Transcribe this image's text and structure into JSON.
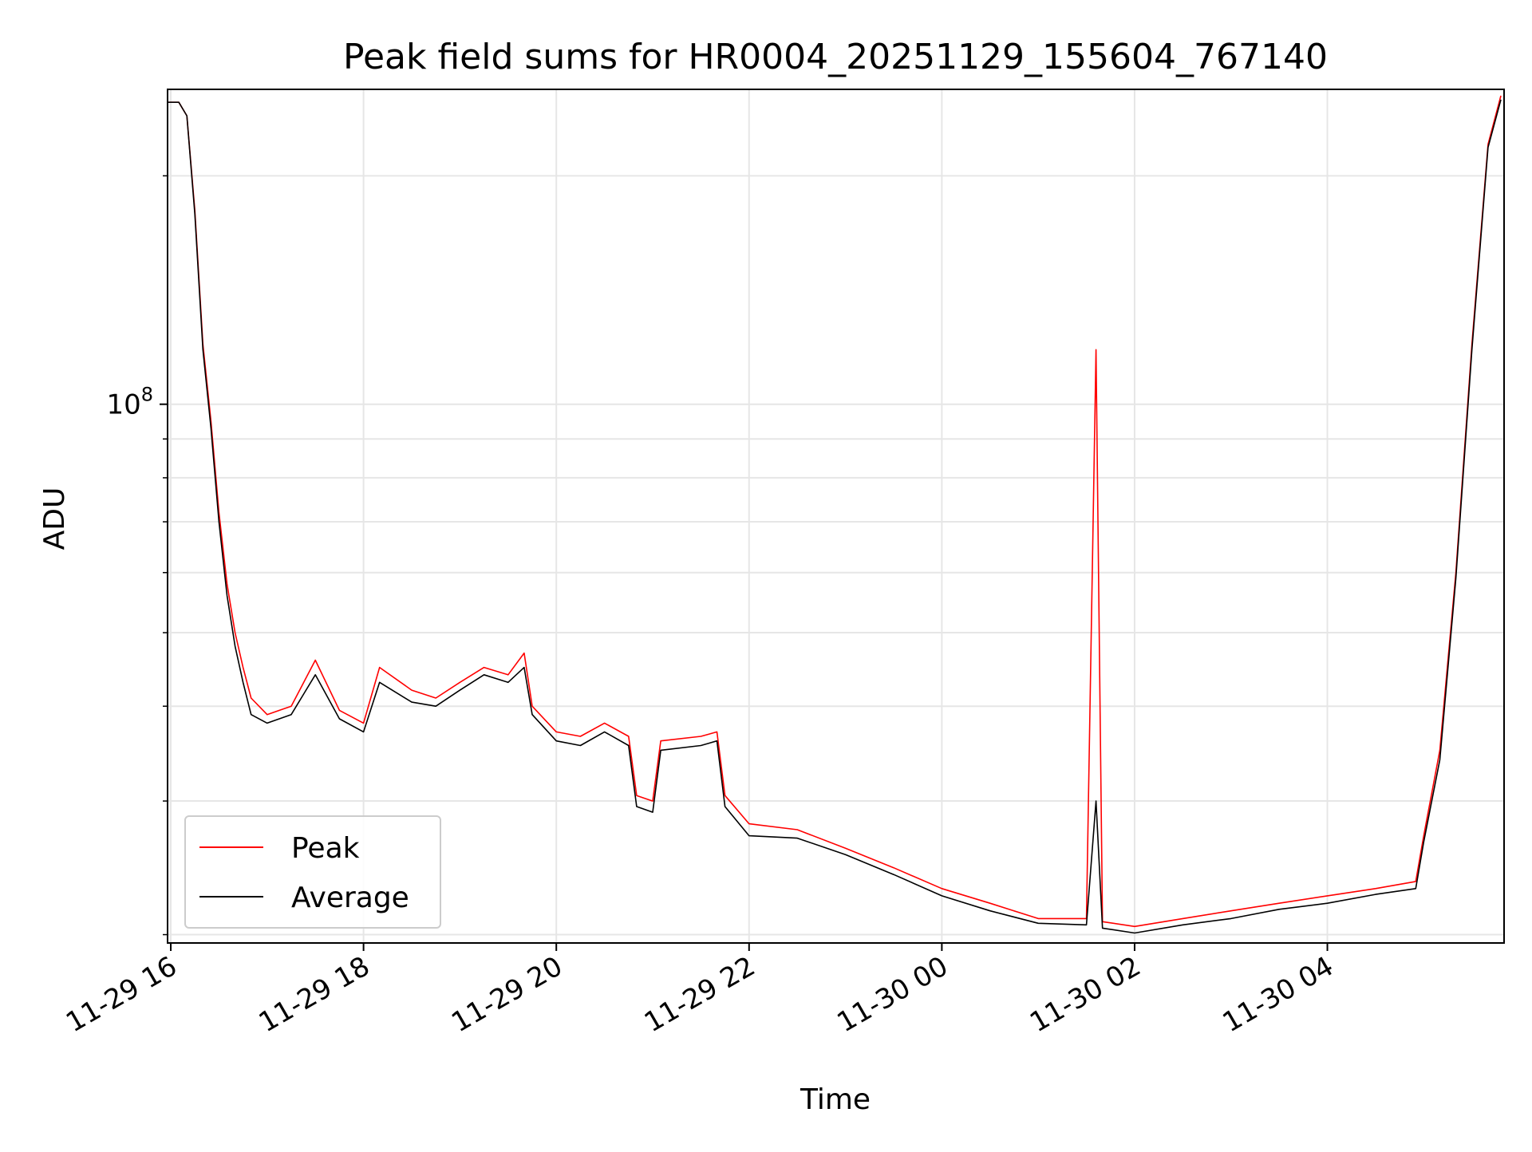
{
  "chart_data": {
    "type": "line",
    "title": "Peak field sums for HR0004_20251129_155604_767140",
    "xlabel": "Time",
    "ylabel": "ADU",
    "y_scale": "log",
    "xlim": [
      "2025-11-29 15:58",
      "2025-11-30 05:50"
    ],
    "ylim": [
      19500000,
      260000000
    ],
    "x_ticks": [
      {
        "value": "2025-11-29 16:00",
        "label": "11-29 16"
      },
      {
        "value": "2025-11-29 18:00",
        "label": "11-29 18"
      },
      {
        "value": "2025-11-29 20:00",
        "label": "11-29 20"
      },
      {
        "value": "2025-11-29 22:00",
        "label": "11-29 22"
      },
      {
        "value": "2025-11-30 00:00",
        "label": "11-30 00"
      },
      {
        "value": "2025-11-30 02:00",
        "label": "11-30 02"
      },
      {
        "value": "2025-11-30 04:00",
        "label": "11-30 04"
      }
    ],
    "y_ticks": [
      {
        "value": 100000000,
        "label": "10^8"
      }
    ],
    "grid": true,
    "legend_position": "lower-left",
    "series": [
      {
        "name": "Peak",
        "color": "#ff0000",
        "points": [
          [
            "2025-11-29 15:58",
            250000000
          ],
          [
            "2025-11-29 16:05",
            250000000
          ],
          [
            "2025-11-29 16:10",
            240000000
          ],
          [
            "2025-11-29 16:15",
            180000000
          ],
          [
            "2025-11-29 16:20",
            120000000
          ],
          [
            "2025-11-29 16:25",
            95000000
          ],
          [
            "2025-11-29 16:30",
            72000000
          ],
          [
            "2025-11-29 16:35",
            58000000
          ],
          [
            "2025-11-29 16:40",
            50000000
          ],
          [
            "2025-11-29 16:45",
            45000000
          ],
          [
            "2025-11-29 16:50",
            41000000
          ],
          [
            "2025-11-29 17:00",
            39000000
          ],
          [
            "2025-11-29 17:15",
            40000000
          ],
          [
            "2025-11-29 17:30",
            46000000
          ],
          [
            "2025-11-29 17:45",
            39500000
          ],
          [
            "2025-11-29 18:00",
            38000000
          ],
          [
            "2025-11-29 18:10",
            45000000
          ],
          [
            "2025-11-29 18:30",
            42000000
          ],
          [
            "2025-11-29 18:45",
            41000000
          ],
          [
            "2025-11-29 19:00",
            43000000
          ],
          [
            "2025-11-29 19:15",
            45000000
          ],
          [
            "2025-11-29 19:30",
            44000000
          ],
          [
            "2025-11-29 19:40",
            47000000
          ],
          [
            "2025-11-29 19:45",
            40000000
          ],
          [
            "2025-11-29 20:00",
            37000000
          ],
          [
            "2025-11-29 20:15",
            36500000
          ],
          [
            "2025-11-29 20:30",
            38000000
          ],
          [
            "2025-11-29 20:45",
            36500000
          ],
          [
            "2025-11-29 20:50",
            30500000
          ],
          [
            "2025-11-29 21:00",
            30000000
          ],
          [
            "2025-11-29 21:05",
            36000000
          ],
          [
            "2025-11-29 21:30",
            36500000
          ],
          [
            "2025-11-29 21:40",
            37000000
          ],
          [
            "2025-11-29 21:45",
            30500000
          ],
          [
            "2025-11-29 22:00",
            28000000
          ],
          [
            "2025-11-29 22:30",
            27500000
          ],
          [
            "2025-11-29 23:00",
            26000000
          ],
          [
            "2025-11-29 23:30",
            24500000
          ],
          [
            "2025-11-30 00:00",
            23000000
          ],
          [
            "2025-11-30 00:30",
            22000000
          ],
          [
            "2025-11-30 01:00",
            21000000
          ],
          [
            "2025-11-30 01:30",
            21000000
          ],
          [
            "2025-11-30 01:36",
            118000000
          ],
          [
            "2025-11-30 01:40",
            20800000
          ],
          [
            "2025-11-30 02:00",
            20500000
          ],
          [
            "2025-11-30 02:30",
            21000000
          ],
          [
            "2025-11-30 03:00",
            21500000
          ],
          [
            "2025-11-30 03:30",
            22000000
          ],
          [
            "2025-11-30 04:00",
            22500000
          ],
          [
            "2025-11-30 04:30",
            23000000
          ],
          [
            "2025-11-30 04:55",
            23500000
          ],
          [
            "2025-11-30 05:00",
            27000000
          ],
          [
            "2025-11-30 05:10",
            35000000
          ],
          [
            "2025-11-30 05:20",
            60000000
          ],
          [
            "2025-11-30 05:30",
            120000000
          ],
          [
            "2025-11-30 05:40",
            220000000
          ],
          [
            "2025-11-30 05:48",
            255000000
          ]
        ]
      },
      {
        "name": "Average",
        "color": "#000000",
        "points": [
          [
            "2025-11-29 15:58",
            250000000
          ],
          [
            "2025-11-29 16:05",
            250000000
          ],
          [
            "2025-11-29 16:10",
            240000000
          ],
          [
            "2025-11-29 16:15",
            178000000
          ],
          [
            "2025-11-29 16:20",
            118000000
          ],
          [
            "2025-11-29 16:25",
            93000000
          ],
          [
            "2025-11-29 16:30",
            70000000
          ],
          [
            "2025-11-29 16:35",
            56000000
          ],
          [
            "2025-11-29 16:40",
            48000000
          ],
          [
            "2025-11-29 16:45",
            43000000
          ],
          [
            "2025-11-29 16:50",
            39000000
          ],
          [
            "2025-11-29 17:00",
            38000000
          ],
          [
            "2025-11-29 17:15",
            39000000
          ],
          [
            "2025-11-29 17:30",
            44000000
          ],
          [
            "2025-11-29 17:45",
            38500000
          ],
          [
            "2025-11-29 18:00",
            37000000
          ],
          [
            "2025-11-29 18:10",
            43000000
          ],
          [
            "2025-11-29 18:30",
            40500000
          ],
          [
            "2025-11-29 18:45",
            40000000
          ],
          [
            "2025-11-29 19:00",
            42000000
          ],
          [
            "2025-11-29 19:15",
            44000000
          ],
          [
            "2025-11-29 19:30",
            43000000
          ],
          [
            "2025-11-29 19:40",
            45000000
          ],
          [
            "2025-11-29 19:45",
            39000000
          ],
          [
            "2025-11-29 20:00",
            36000000
          ],
          [
            "2025-11-29 20:15",
            35500000
          ],
          [
            "2025-11-29 20:30",
            37000000
          ],
          [
            "2025-11-29 20:45",
            35500000
          ],
          [
            "2025-11-29 20:50",
            29500000
          ],
          [
            "2025-11-29 21:00",
            29000000
          ],
          [
            "2025-11-29 21:05",
            35000000
          ],
          [
            "2025-11-29 21:30",
            35500000
          ],
          [
            "2025-11-29 21:40",
            36000000
          ],
          [
            "2025-11-29 21:45",
            29500000
          ],
          [
            "2025-11-29 22:00",
            27000000
          ],
          [
            "2025-11-29 22:30",
            26800000
          ],
          [
            "2025-11-29 23:00",
            25500000
          ],
          [
            "2025-11-29 23:30",
            24000000
          ],
          [
            "2025-11-30 00:00",
            22500000
          ],
          [
            "2025-11-30 00:30",
            21500000
          ],
          [
            "2025-11-30 01:00",
            20700000
          ],
          [
            "2025-11-30 01:30",
            20600000
          ],
          [
            "2025-11-30 01:36",
            30000000
          ],
          [
            "2025-11-30 01:40",
            20400000
          ],
          [
            "2025-11-30 02:00",
            20100000
          ],
          [
            "2025-11-30 02:30",
            20600000
          ],
          [
            "2025-11-30 03:00",
            21000000
          ],
          [
            "2025-11-30 03:30",
            21600000
          ],
          [
            "2025-11-30 04:00",
            22000000
          ],
          [
            "2025-11-30 04:30",
            22600000
          ],
          [
            "2025-11-30 04:55",
            23000000
          ],
          [
            "2025-11-30 05:00",
            26500000
          ],
          [
            "2025-11-30 05:10",
            34000000
          ],
          [
            "2025-11-30 05:20",
            59000000
          ],
          [
            "2025-11-30 05:30",
            118000000
          ],
          [
            "2025-11-30 05:40",
            218000000
          ],
          [
            "2025-11-30 05:48",
            252000000
          ]
        ]
      }
    ]
  }
}
